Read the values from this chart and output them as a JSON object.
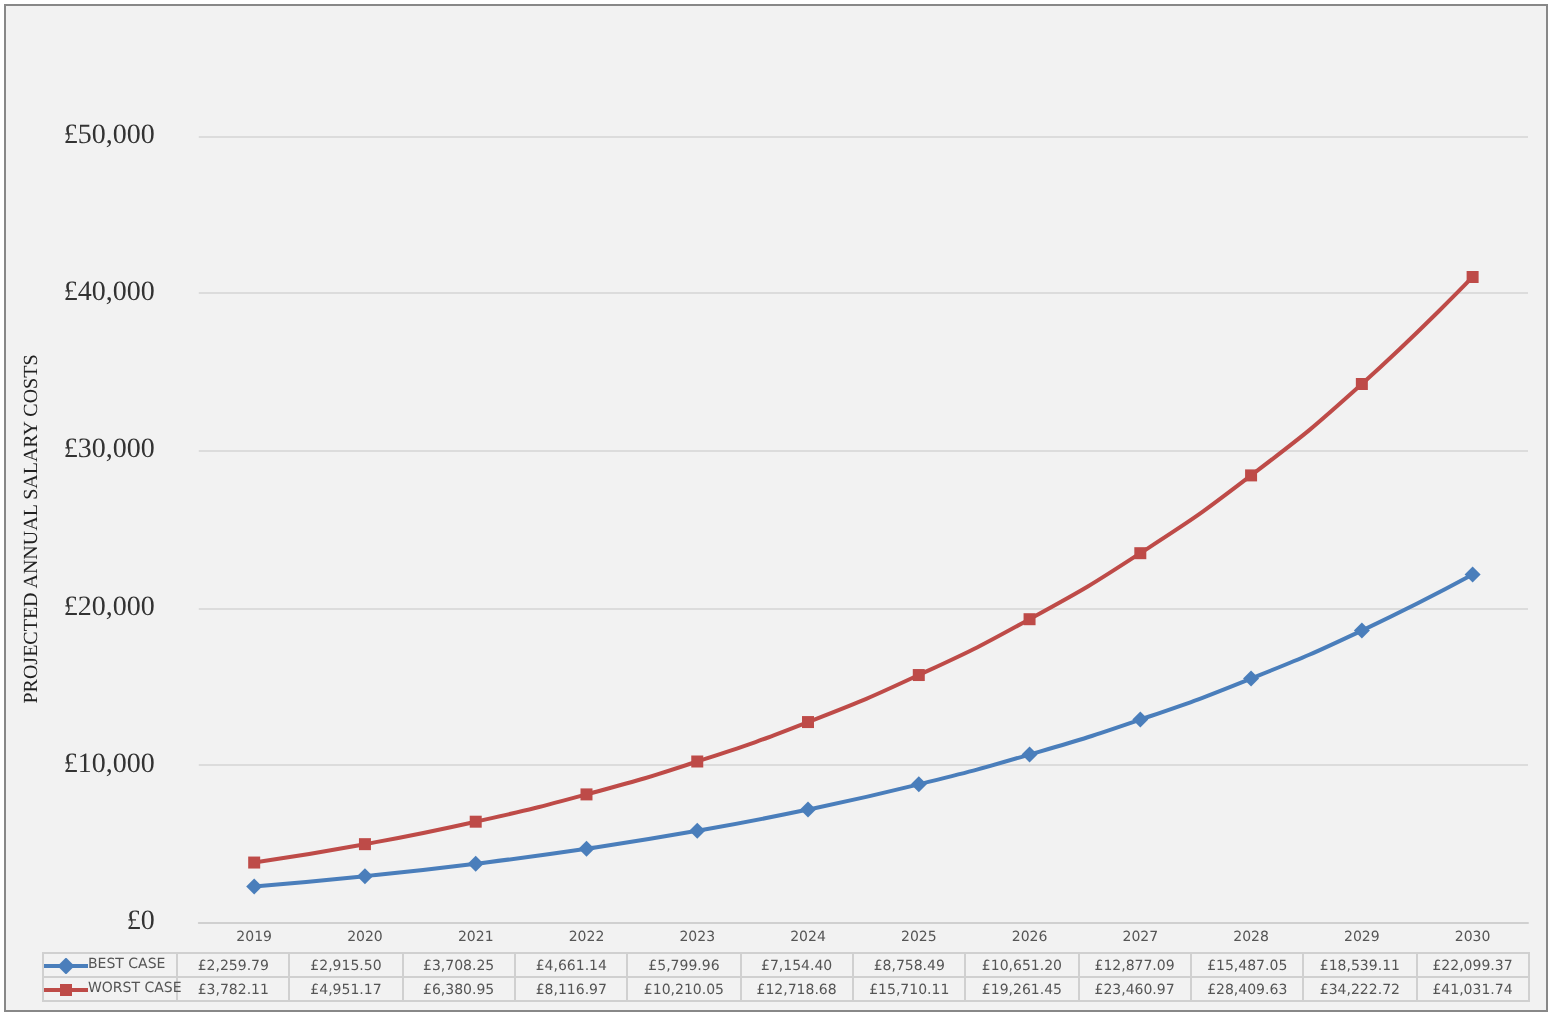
{
  "chart_data": {
    "type": "line",
    "ylabel": "PROJECTED ANNUAL SALARY COSTS",
    "categories": [
      "2019",
      "2020",
      "2021",
      "2022",
      "2023",
      "2024",
      "2025",
      "2026",
      "2027",
      "2028",
      "2029",
      "2030"
    ],
    "series": [
      {
        "name": "BEST CASE",
        "color": "#4a7ebb",
        "marker": "diamond",
        "values": [
          2259.79,
          2915.5,
          3708.25,
          4661.14,
          5799.96,
          7154.4,
          8758.49,
          10651.2,
          12877.09,
          15487.05,
          18539.11,
          22099.37
        ],
        "value_labels": [
          "£2,259.79",
          "£2,915.50",
          "£3,708.25",
          "£4,661.14",
          "£5,799.96",
          "£7,154.40",
          "£8,758.49",
          "£10,651.20",
          "£12,877.09",
          "£15,487.05",
          "£18,539.11",
          "£22,099.37"
        ]
      },
      {
        "name": "WORST CASE",
        "color": "#be4b48",
        "marker": "square",
        "values": [
          3782.11,
          4951.17,
          6380.95,
          8116.97,
          10210.05,
          12718.68,
          15710.11,
          19261.45,
          23460.97,
          28409.63,
          34222.72,
          41031.74
        ],
        "value_labels": [
          "£3,782.11",
          "£4,951.17",
          "£6,380.95",
          "£8,116.97",
          "£10,210.05",
          "£12,718.68",
          "£15,710.11",
          "£19,261.45",
          "£23,460.97",
          "£28,409.63",
          "£34,222.72",
          "£41,031.74"
        ]
      }
    ],
    "ylim": [
      0,
      50000
    ],
    "yticks": [
      {
        "value": 0,
        "label": "£0"
      },
      {
        "value": 10000,
        "label": "£10,000"
      },
      {
        "value": 20000,
        "label": "£20,000"
      },
      {
        "value": 30000,
        "label": "£30,000"
      },
      {
        "value": 40000,
        "label": "£40,000"
      },
      {
        "value": 50000,
        "label": "£50,000"
      }
    ],
    "grid": "y",
    "legend": "bottom",
    "line_style": "solid"
  }
}
